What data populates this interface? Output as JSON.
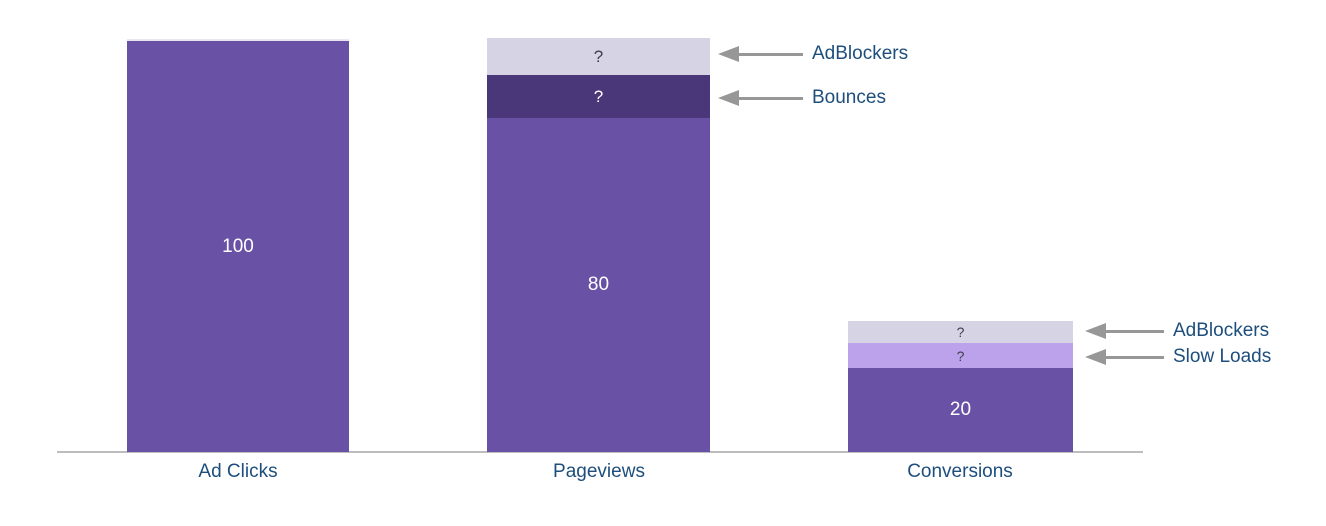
{
  "chart_data": {
    "type": "bar",
    "subtype": "stacked-funnel",
    "title": "",
    "xlabel": "",
    "ylabel": "",
    "ylim": [
      0,
      100
    ],
    "grid": false,
    "legend": "none",
    "categories": [
      "Ad Clicks",
      "Pageviews",
      "Conversions"
    ],
    "bars": [
      {
        "category": "Ad Clicks",
        "total": 100,
        "segments": [
          {
            "name": "measured-value",
            "label": "100",
            "value": 100,
            "color": "#6951A6",
            "text_color": "#FFFFFF"
          }
        ]
      },
      {
        "category": "Pageviews",
        "total": 100,
        "segments": [
          {
            "name": "AdBlockers",
            "label": "?",
            "value_estimate": 9,
            "color": "#D6D3E4",
            "text_color": "#3E3E4A"
          },
          {
            "name": "Bounces",
            "label": "?",
            "value_estimate": 10,
            "color": "#4A3779",
            "text_color": "#FFFFFF"
          },
          {
            "name": "measured-value",
            "label": "80",
            "value": 80,
            "color": "#6951A6",
            "text_color": "#FFFFFF"
          }
        ]
      },
      {
        "category": "Conversions",
        "total": 31,
        "segments": [
          {
            "name": "AdBlockers",
            "label": "?",
            "value_estimate": 5,
            "color": "#D6D3E4",
            "text_color": "#3E3E4A"
          },
          {
            "name": "Slow Loads",
            "label": "?",
            "value_estimate": 6,
            "color": "#BBA2EA",
            "text_color": "#3E3E4A"
          },
          {
            "name": "measured-value",
            "label": "20",
            "value": 20,
            "color": "#6951A6",
            "text_color": "#FFFFFF"
          }
        ]
      }
    ],
    "annotations": [
      {
        "target_bar": "Pageviews",
        "target_segment": "AdBlockers",
        "label": "AdBlockers"
      },
      {
        "target_bar": "Pageviews",
        "target_segment": "Bounces",
        "label": "Bounces"
      },
      {
        "target_bar": "Conversions",
        "target_segment": "AdBlockers",
        "label": "AdBlockers"
      },
      {
        "target_bar": "Conversions",
        "target_segment": "Slow Loads",
        "label": "Slow Loads"
      }
    ],
    "colors": {
      "bar_main": "#6951A6",
      "bar_dark": "#4A3779",
      "bar_light_lavender": "#D6D3E4",
      "bar_light_purple": "#BBA2EA",
      "category_label": "#1D4E7C",
      "annotation_label": "#1D4E7C",
      "arrow": "#979797",
      "axis_line": "#BDBDBD",
      "background": "#FFFFFF"
    }
  }
}
